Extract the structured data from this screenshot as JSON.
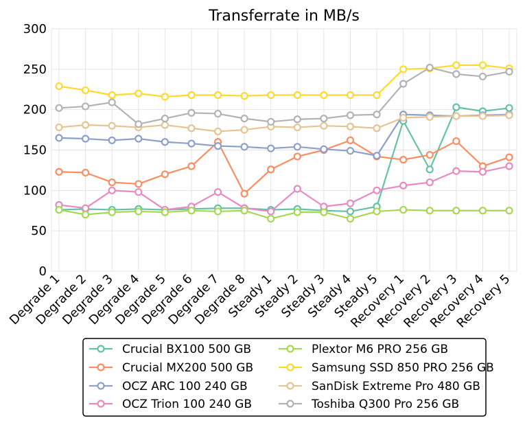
{
  "chart_data": {
    "type": "line",
    "title": "Transferrate in MB/s",
    "xlabel": "",
    "ylabel": "",
    "ylim": [
      0,
      300
    ],
    "yticks": [
      0,
      50,
      100,
      150,
      200,
      250,
      300
    ],
    "grid": true,
    "legend_position": "bottom",
    "categories": [
      "Degrade 1",
      "Degrade 2",
      "Degrade 3",
      "Degrade 4",
      "Degrade 5",
      "Degrade 6",
      "Degrade 7",
      "Degrade 8",
      "Steady 1",
      "Steady 2",
      "Steady 3",
      "Steady 4",
      "Steady 5",
      "Recovery 1",
      "Recovery 2",
      "Recovery 3",
      "Recovery 4",
      "Recovery 5"
    ],
    "series": [
      {
        "name": "Crucial BX100 500 GB",
        "color": "#66c2a5",
        "values": [
          76,
          77,
          76,
          77,
          76,
          77,
          78,
          78,
          76,
          77,
          75,
          74,
          80,
          186,
          126,
          203,
          198,
          202
        ]
      },
      {
        "name": "Crucial MX200 500 GB",
        "color": "#fc8d62",
        "values": [
          123,
          122,
          110,
          108,
          120,
          130,
          160,
          96,
          126,
          142,
          150,
          162,
          142,
          138,
          144,
          161,
          130,
          141
        ]
      },
      {
        "name": "OCZ ARC 100 240 GB",
        "color": "#8da0cb",
        "values": [
          165,
          164,
          162,
          164,
          160,
          158,
          155,
          154,
          152,
          154,
          151,
          149,
          143,
          194,
          193,
          192,
          193,
          194
        ]
      },
      {
        "name": "OCZ Trion 100 240 GB",
        "color": "#e78ac3",
        "values": [
          82,
          78,
          100,
          98,
          76,
          80,
          98,
          78,
          74,
          102,
          80,
          84,
          100,
          106,
          110,
          124,
          123,
          130
        ]
      },
      {
        "name": "Plextor M6 PRO 256 GB",
        "color": "#a6d854",
        "values": [
          76,
          70,
          73,
          74,
          73,
          75,
          74,
          75,
          65,
          73,
          73,
          65,
          74,
          76,
          75,
          75,
          75,
          75
        ]
      },
      {
        "name": "Samsung SSD 850 PRO 256 GB",
        "color": "#ffd92f",
        "values": [
          229,
          224,
          218,
          220,
          216,
          218,
          218,
          217,
          218,
          218,
          218,
          218,
          218,
          250,
          251,
          255,
          255,
          251
        ]
      },
      {
        "name": "SanDisk Extreme Pro 480 GB",
        "color": "#e5c494",
        "values": [
          178,
          181,
          180,
          178,
          181,
          177,
          173,
          175,
          179,
          178,
          180,
          179,
          177,
          190,
          191,
          192,
          192,
          193
        ]
      },
      {
        "name": "Toshiba Q300 Pro 256 GB",
        "color": "#b3b3b3",
        "values": [
          202,
          204,
          209,
          182,
          189,
          196,
          195,
          189,
          185,
          188,
          189,
          193,
          194,
          232,
          252,
          244,
          241,
          247
        ]
      }
    ]
  }
}
